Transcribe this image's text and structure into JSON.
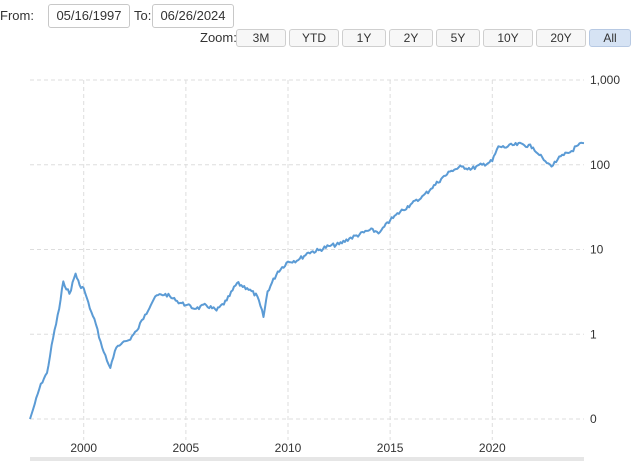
{
  "range_selector": {
    "from_label": "From:",
    "from_value": "05/16/1997",
    "to_label": "To:",
    "to_value": "06/26/2024",
    "zoom_label": "Zoom:",
    "zoom_buttons": [
      "3M",
      "YTD",
      "1Y",
      "2Y",
      "5Y",
      "10Y",
      "20Y",
      "All"
    ],
    "active_zoom": "All"
  },
  "colors": {
    "line": "#5b9bd5",
    "grid": "#dddddd",
    "active_button": "#d6e3f4"
  },
  "chart_data": {
    "type": "line",
    "title": "",
    "xlabel": "",
    "ylabel": "",
    "y_scale": "log",
    "y_ticks": [
      {
        "value": 0.1,
        "label": "0"
      },
      {
        "value": 1,
        "label": "1"
      },
      {
        "value": 10,
        "label": "10"
      },
      {
        "value": 100,
        "label": "100"
      },
      {
        "value": 1000,
        "label": "1,000"
      }
    ],
    "x_ticks": [
      2000,
      2005,
      2010,
      2015,
      2020
    ],
    "xlim": [
      1997.37,
      2024.49
    ],
    "ylim": [
      0.1,
      1000
    ],
    "grid": true,
    "series": [
      {
        "name": "",
        "x": [
          1997.37,
          1997.6,
          1997.9,
          1998.2,
          1998.5,
          1998.8,
          1999.0,
          1999.3,
          1999.6,
          1999.8,
          2000.0,
          2000.3,
          2000.6,
          2000.9,
          2001.3,
          2001.6,
          2001.9,
          2002.2,
          2002.6,
          2003.0,
          2003.5,
          2004.0,
          2004.5,
          2005.0,
          2005.5,
          2006.0,
          2006.5,
          2007.0,
          2007.5,
          2008.0,
          2008.5,
          2008.8,
          2009.0,
          2009.5,
          2010.0,
          2010.5,
          2011.0,
          2011.5,
          2012.0,
          2012.5,
          2013.0,
          2013.5,
          2014.0,
          2014.5,
          2015.0,
          2015.5,
          2016.0,
          2016.5,
          2017.0,
          2017.5,
          2018.0,
          2018.5,
          2019.0,
          2019.5,
          2020.0,
          2020.3,
          2020.6,
          2021.0,
          2021.5,
          2022.0,
          2022.3,
          2022.6,
          2022.9,
          2023.2,
          2023.5,
          2023.8,
          2024.2,
          2024.49
        ],
        "y": [
          0.1,
          0.15,
          0.26,
          0.35,
          0.9,
          2.0,
          4.2,
          3.0,
          5.2,
          3.8,
          3.5,
          2.0,
          1.3,
          0.7,
          0.4,
          0.7,
          0.8,
          0.85,
          1.1,
          1.7,
          2.8,
          3.0,
          2.5,
          2.2,
          2.0,
          2.2,
          1.9,
          2.5,
          4.0,
          3.5,
          2.8,
          1.6,
          3.2,
          5.5,
          7.2,
          7.5,
          9.2,
          9.8,
          11.0,
          11.5,
          13.5,
          15.0,
          17.0,
          16.0,
          22.0,
          28.0,
          34.0,
          40.0,
          52.0,
          68.0,
          85.0,
          95.0,
          90.0,
          100.0,
          110.0,
          165.0,
          160.0,
          170.0,
          175.0,
          160.0,
          130.0,
          110.0,
          95.0,
          115.0,
          130.0,
          140.0,
          170.0,
          180.0
        ]
      }
    ]
  }
}
